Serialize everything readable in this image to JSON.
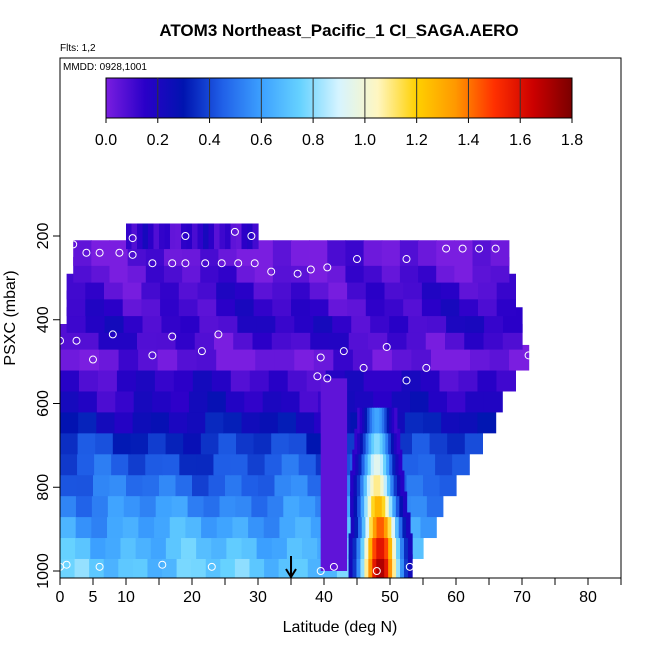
{
  "chart_data": {
    "type": "heatmap",
    "title": "ATOM3 Northeast_Pacific_1 CI_SAGA.AERO",
    "flights_label": "Flts: 1,2",
    "dates_label": "MMDD: 0928,1001",
    "xlabel": "Latitude (deg N)",
    "ylabel": "PSXC (mbar)",
    "xlim": [
      0,
      85
    ],
    "ylim_mbar": [
      1000,
      100
    ],
    "x_ticks": [
      0,
      5,
      10,
      20,
      30,
      40,
      50,
      60,
      70,
      80
    ],
    "x_minor_ticks": [
      15,
      25,
      35,
      45,
      55,
      65,
      75,
      85
    ],
    "y_ticks": [
      200,
      400,
      600,
      800,
      1000
    ],
    "colorbar": {
      "min": 0.0,
      "max": 1.8,
      "ticks": [
        "0.0",
        "0.2",
        "0.4",
        "0.6",
        "0.8",
        "1.0",
        "1.2",
        "1.4",
        "1.6",
        "1.8"
      ]
    },
    "colors": [
      "#7a1ee0",
      "#2a00c8",
      "#0014b0",
      "#2060e8",
      "#3ca0ff",
      "#66d2ff",
      "#d6f4ff",
      "#fff6c0",
      "#ffd000",
      "#ff9800",
      "#ff3000",
      "#cc0000",
      "#7a0000"
    ],
    "curtain_bands": [
      {
        "p": 990,
        "lat_min": 0,
        "lat_max": 53,
        "value": 0.72
      },
      {
        "p": 940,
        "lat_min": 0,
        "lat_max": 55,
        "value": 0.68
      },
      {
        "p": 890,
        "lat_min": 0,
        "lat_max": 57,
        "value": 0.62
      },
      {
        "p": 840,
        "lat_min": 0,
        "lat_max": 58,
        "value": 0.55
      },
      {
        "p": 790,
        "lat_min": 0,
        "lat_max": 60,
        "value": 0.48
      },
      {
        "p": 740,
        "lat_min": 0,
        "lat_max": 62,
        "value": 0.42
      },
      {
        "p": 690,
        "lat_min": 0,
        "lat_max": 64,
        "value": 0.36
      },
      {
        "p": 640,
        "lat_min": 0,
        "lat_max": 66,
        "value": 0.26
      },
      {
        "p": 590,
        "lat_min": 0,
        "lat_max": 67,
        "value": 0.18
      },
      {
        "p": 540,
        "lat_min": 0,
        "lat_max": 69,
        "value": 0.14
      },
      {
        "p": 490,
        "lat_min": 0,
        "lat_max": 71,
        "value": 0.03
      },
      {
        "p": 440,
        "lat_min": 0,
        "lat_max": 70,
        "value": 0.1
      },
      {
        "p": 400,
        "lat_min": 1,
        "lat_max": 70,
        "value": 0.14
      },
      {
        "p": 360,
        "lat_min": 1,
        "lat_max": 69,
        "value": 0.12
      },
      {
        "p": 320,
        "lat_min": 1,
        "lat_max": 69,
        "value": 0.1
      },
      {
        "p": 280,
        "lat_min": 2,
        "lat_max": 68,
        "value": 0.06
      },
      {
        "p": 240,
        "lat_min": 2,
        "lat_max": 68,
        "value": 0.03
      },
      {
        "p": 200,
        "lat_min": 10,
        "lat_max": 30,
        "value": 0.12
      }
    ],
    "plume": [
      {
        "p": 990,
        "lat": 48.5,
        "width": 4.5,
        "value": 1.72
      },
      {
        "p": 940,
        "lat": 48.5,
        "width": 4.5,
        "value": 1.6
      },
      {
        "p": 890,
        "lat": 48.5,
        "width": 4.2,
        "value": 1.45
      },
      {
        "p": 840,
        "lat": 48.2,
        "width": 4.0,
        "value": 1.28
      },
      {
        "p": 790,
        "lat": 48.0,
        "width": 3.8,
        "value": 1.1
      },
      {
        "p": 740,
        "lat": 48.0,
        "width": 3.5,
        "value": 0.95
      },
      {
        "p": 690,
        "lat": 48.0,
        "width": 3.2,
        "value": 0.8
      },
      {
        "p": 640,
        "lat": 48.0,
        "width": 2.8,
        "value": 0.62
      }
    ],
    "low_column": {
      "lat_min": 39.5,
      "lat_max": 43.5,
      "p_min": 540,
      "p_max": 1000,
      "value": 0.05
    },
    "sample_points": [
      {
        "lat": 0,
        "p": 990
      },
      {
        "lat": 1,
        "p": 985
      },
      {
        "lat": 6,
        "p": 990
      },
      {
        "lat": 15.5,
        "p": 985
      },
      {
        "lat": 23,
        "p": 990
      },
      {
        "lat": 39.5,
        "p": 1000
      },
      {
        "lat": 41.5,
        "p": 990
      },
      {
        "lat": 48,
        "p": 1000
      },
      {
        "lat": 53,
        "p": 990
      },
      {
        "lat": 0,
        "p": 450
      },
      {
        "lat": 2.5,
        "p": 450
      },
      {
        "lat": 5,
        "p": 495
      },
      {
        "lat": 8,
        "p": 435
      },
      {
        "lat": 14,
        "p": 485
      },
      {
        "lat": 17,
        "p": 440
      },
      {
        "lat": 21.5,
        "p": 475
      },
      {
        "lat": 24,
        "p": 435
      },
      {
        "lat": 39,
        "p": 535
      },
      {
        "lat": 39.5,
        "p": 490
      },
      {
        "lat": 40.5,
        "p": 540
      },
      {
        "lat": 43,
        "p": 475
      },
      {
        "lat": 46,
        "p": 515
      },
      {
        "lat": 49.5,
        "p": 465
      },
      {
        "lat": 52.5,
        "p": 545
      },
      {
        "lat": 55.5,
        "p": 515
      },
      {
        "lat": 71,
        "p": 485
      },
      {
        "lat": 2,
        "p": 220
      },
      {
        "lat": 4,
        "p": 240
      },
      {
        "lat": 6,
        "p": 240
      },
      {
        "lat": 9,
        "p": 240
      },
      {
        "lat": 11,
        "p": 205
      },
      {
        "lat": 11,
        "p": 245
      },
      {
        "lat": 14,
        "p": 265
      },
      {
        "lat": 17,
        "p": 265
      },
      {
        "lat": 19,
        "p": 200
      },
      {
        "lat": 19,
        "p": 265
      },
      {
        "lat": 22,
        "p": 265
      },
      {
        "lat": 24.5,
        "p": 265
      },
      {
        "lat": 26.5,
        "p": 190
      },
      {
        "lat": 27,
        "p": 265
      },
      {
        "lat": 29,
        "p": 200
      },
      {
        "lat": 29.5,
        "p": 265
      },
      {
        "lat": 32,
        "p": 285
      },
      {
        "lat": 36,
        "p": 290
      },
      {
        "lat": 38,
        "p": 280
      },
      {
        "lat": 40.5,
        "p": 275
      },
      {
        "lat": 45,
        "p": 255
      },
      {
        "lat": 52.5,
        "p": 255
      },
      {
        "lat": 58.5,
        "p": 230
      },
      {
        "lat": 61,
        "p": 230
      },
      {
        "lat": 63.5,
        "p": 230
      },
      {
        "lat": 66,
        "p": 230
      },
      {
        "lat": 69,
        "p": 230
      }
    ],
    "flight_marker_lat": 35
  }
}
